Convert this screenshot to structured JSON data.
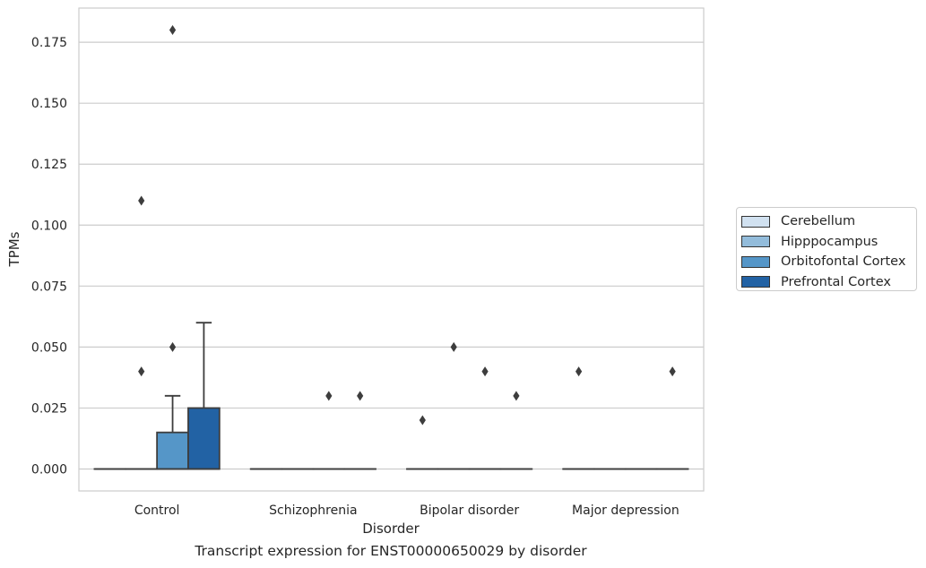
{
  "chart_data": {
    "type": "box",
    "title": "",
    "caption": "Transcript expression for ENST00000650029 by disorder",
    "xlabel": "Disorder",
    "ylabel": "TPMs",
    "ylim": [
      -0.009,
      0.189
    ],
    "yticks": [
      "0.000",
      "0.025",
      "0.050",
      "0.075",
      "0.100",
      "0.125",
      "0.150",
      "0.175"
    ],
    "ytick_values": [
      0,
      0.025,
      0.05,
      0.075,
      0.1,
      0.125,
      0.15,
      0.175
    ],
    "grid": "horizontal",
    "legend_position": "right",
    "categories": [
      "Control",
      "Schizophrenia",
      "Bipolar disorder",
      "Major depression"
    ],
    "series": [
      {
        "name": "Cerebellum",
        "color": "#d1e1f0",
        "boxes": [
          {
            "q1": 0,
            "median": 0,
            "q3": 0,
            "whisker_low": 0,
            "whisker_high": 0,
            "outliers": []
          },
          {
            "q1": 0,
            "median": 0,
            "q3": 0,
            "whisker_low": 0,
            "whisker_high": 0,
            "outliers": []
          },
          {
            "q1": 0,
            "median": 0,
            "q3": 0,
            "whisker_low": 0,
            "whisker_high": 0,
            "outliers": [
              0.02
            ]
          },
          {
            "q1": 0,
            "median": 0,
            "q3": 0,
            "whisker_low": 0,
            "whisker_high": 0,
            "outliers": [
              0.04
            ]
          }
        ]
      },
      {
        "name": "Hipppocampus",
        "color": "#93bcdb",
        "boxes": [
          {
            "q1": 0,
            "median": 0,
            "q3": 0,
            "whisker_low": 0,
            "whisker_high": 0,
            "outliers": [
              0.04,
              0.11
            ]
          },
          {
            "q1": 0,
            "median": 0,
            "q3": 0,
            "whisker_low": 0,
            "whisker_high": 0,
            "outliers": []
          },
          {
            "q1": 0,
            "median": 0,
            "q3": 0,
            "whisker_low": 0,
            "whisker_high": 0,
            "outliers": [
              0.05
            ]
          },
          {
            "q1": 0,
            "median": 0,
            "q3": 0,
            "whisker_low": 0,
            "whisker_high": 0,
            "outliers": []
          }
        ]
      },
      {
        "name": "Orbitofontal Cortex",
        "color": "#5596c8",
        "boxes": [
          {
            "q1": 0,
            "median": 0,
            "q3": 0.015,
            "whisker_low": 0,
            "whisker_high": 0.03,
            "outliers": [
              0.05,
              0.18
            ]
          },
          {
            "q1": 0,
            "median": 0,
            "q3": 0,
            "whisker_low": 0,
            "whisker_high": 0,
            "outliers": [
              0.03
            ]
          },
          {
            "q1": 0,
            "median": 0,
            "q3": 0,
            "whisker_low": 0,
            "whisker_high": 0,
            "outliers": [
              0.04
            ]
          },
          {
            "q1": 0,
            "median": 0,
            "q3": 0,
            "whisker_low": 0,
            "whisker_high": 0,
            "outliers": []
          }
        ]
      },
      {
        "name": "Prefrontal Cortex",
        "color": "#2262a4",
        "boxes": [
          {
            "q1": 0,
            "median": 0,
            "q3": 0.025,
            "whisker_low": 0,
            "whisker_high": 0.06,
            "outliers": []
          },
          {
            "q1": 0,
            "median": 0,
            "q3": 0,
            "whisker_low": 0,
            "whisker_high": 0,
            "outliers": [
              0.03
            ]
          },
          {
            "q1": 0,
            "median": 0,
            "q3": 0,
            "whisker_low": 0,
            "whisker_high": 0,
            "outliers": [
              0.03
            ]
          },
          {
            "q1": 0,
            "median": 0,
            "q3": 0,
            "whisker_low": 0,
            "whisker_high": 0,
            "outliers": [
              0.04
            ]
          }
        ]
      }
    ]
  }
}
